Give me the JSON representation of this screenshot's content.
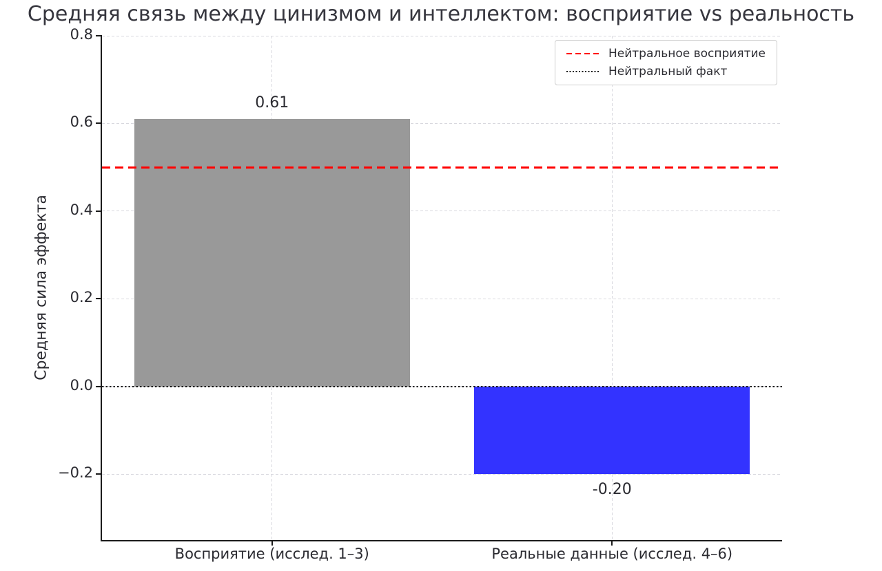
{
  "chart_data": {
    "type": "bar",
    "title": "Средняя связь между цинизмом и интеллектом: восприятие vs реальность",
    "xlabel": "",
    "ylabel": "Средняя сила эффекта",
    "categories": [
      "Восприятие (исслед. 1–3)",
      "Реальные данные (исслед. 4–6)"
    ],
    "values": [
      0.61,
      -0.2
    ],
    "bar_value_labels": [
      "0.61",
      "-0.20"
    ],
    "bar_colors": [
      "#999999",
      "#3333ff"
    ],
    "ylim": [
      -0.35,
      0.8
    ],
    "yticks": [
      0.8,
      0.6,
      0.4,
      0.2,
      0.0,
      -0.2
    ],
    "ytick_labels": [
      "0.8",
      "0.6",
      "0.4",
      "0.2",
      "0.0",
      "−0.2"
    ],
    "grid": "dashed, horizontal and vertical",
    "legend_position": "upper right",
    "reference_lines": [
      {
        "value": 0.5,
        "style": "dashed",
        "color": "#ff0000",
        "label": "Нейтральное восприятие"
      },
      {
        "value": 0.0,
        "style": "dotted",
        "color": "#111111",
        "label": "Нейтральный факт"
      }
    ]
  }
}
